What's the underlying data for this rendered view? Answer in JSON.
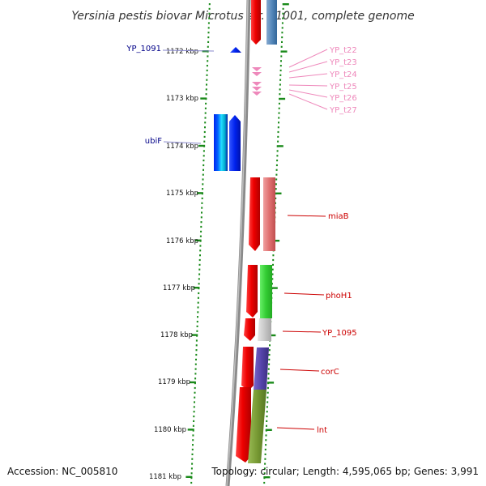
{
  "title": "Yersinia pestis biovar Microtus str. 91001, complete genome",
  "footer": {
    "accession": "Accession: NC_005810",
    "summary": "Topology: circular; Length: 4,595,065 bp; Genes: 3,991"
  },
  "colors": {
    "dotted_ruler": "#1a8a1a",
    "chromosome": "#8a8a8a",
    "forward_gene": "#ee0000",
    "blue_gene": "#0033dd",
    "trna": "#ee88bb",
    "label_red": "#cc0000",
    "label_blue": "#000088",
    "label_pink": "#ee88bb"
  },
  "ticks": [
    {
      "label": "1172 kbp"
    },
    {
      "label": "1173 kbp"
    },
    {
      "label": "1174 kbp"
    },
    {
      "label": "1175 kbp"
    },
    {
      "label": "1176 kbp"
    },
    {
      "label": "1177 kbp"
    },
    {
      "label": "1178 kbp"
    },
    {
      "label": "1179 kbp"
    },
    {
      "label": "1180 kbp"
    },
    {
      "label": "1181 kbp"
    }
  ],
  "genes_left": [
    {
      "name": "YP_1091",
      "icon": "small-blue-arrow"
    },
    {
      "name": "ubiF",
      "icon": "blue-gene-block"
    }
  ],
  "trna_labels": [
    "YP_t22",
    "YP_t23",
    "YP_t24",
    "YP_t25",
    "YP_t26",
    "YP_t27"
  ],
  "genes_right": [
    {
      "name": "miaB",
      "color": "#e07070"
    },
    {
      "name": "phoH1",
      "color": "#33cc33"
    },
    {
      "name": "YP_1095",
      "color": "#c8c8c8"
    },
    {
      "name": "corC",
      "color": "#5544aa"
    },
    {
      "name": "lnt",
      "color": "#779933"
    }
  ]
}
